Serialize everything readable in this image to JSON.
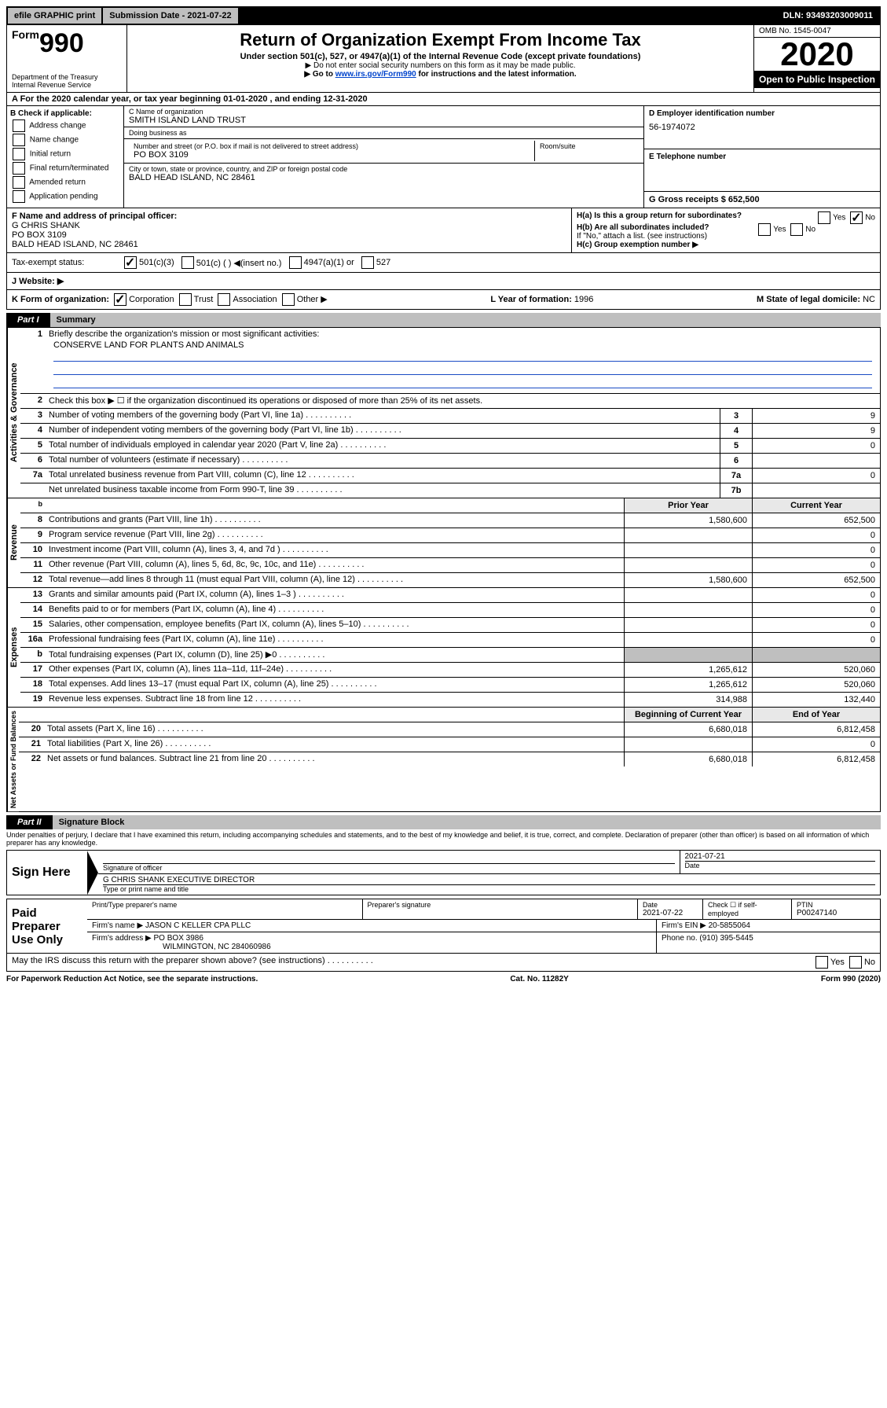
{
  "topbar": {
    "efile": "efile GRAPHIC print",
    "subdate_lbl": "Submission Date - ",
    "subdate": "2021-07-22",
    "dln_lbl": "DLN: ",
    "dln": "93493203009011"
  },
  "header": {
    "form_pre": "Form",
    "form_num": "990",
    "dept1": "Department of the Treasury",
    "dept2": "Internal Revenue Service",
    "title": "Return of Organization Exempt From Income Tax",
    "sub": "Under section 501(c), 527, or 4947(a)(1) of the Internal Revenue Code (except private foundations)",
    "note1": "▶ Do not enter social security numbers on this form as it may be made public.",
    "note2_pre": "▶ Go to ",
    "note2_link": "www.irs.gov/Form990",
    "note2_post": " for instructions and the latest information.",
    "omb": "OMB No. 1545-0047",
    "year": "2020",
    "open": "Open to Public Inspection"
  },
  "A": {
    "text_pre": "A  For the 2020 calendar year, or tax year beginning ",
    "begin": "01-01-2020",
    "mid": "  , and ending ",
    "end": "12-31-2020"
  },
  "B": {
    "hd": "B Check if applicable:",
    "items": [
      "Address change",
      "Name change",
      "Initial return",
      "Final return/terminated",
      "Amended return",
      "Application pending"
    ]
  },
  "C": {
    "name_lbl": "C Name of organization",
    "name": "SMITH ISLAND LAND TRUST",
    "dba_lbl": "Doing business as",
    "dba": "",
    "addr_lbl": "Number and street (or P.O. box if mail is not delivered to street address)",
    "addr": "PO BOX 3109",
    "suite_lbl": "Room/suite",
    "city_lbl": "City or town, state or province, country, and ZIP or foreign postal code",
    "city": "BALD HEAD ISLAND, NC  28461"
  },
  "D": {
    "lbl": "D Employer identification number",
    "val": "56-1974072"
  },
  "E": {
    "lbl": "E Telephone number",
    "val": ""
  },
  "G": {
    "lbl": "G Gross receipts $ ",
    "val": "652,500"
  },
  "F": {
    "lbl": "F  Name and address of principal officer:",
    "l1": "G CHRIS SHANK",
    "l2": "PO BOX 3109",
    "l3": "BALD HEAD ISLAND, NC  28461"
  },
  "H": {
    "a": "H(a)  Is this a group return for subordinates?",
    "b": "H(b)  Are all subordinates included?",
    "bnote": "If \"No,\" attach a list. (see instructions)",
    "c": "H(c)  Group exemption number ▶",
    "yes": "Yes",
    "no": "No"
  },
  "I": {
    "lbl": "Tax-exempt status:",
    "o1": "501(c)(3)",
    "o2": "501(c) (  ) ◀(insert no.)",
    "o3": "4947(a)(1) or",
    "o4": "527"
  },
  "J": {
    "lbl": "J   Website: ▶"
  },
  "K": {
    "lbl": "K Form of organization:",
    "o1": "Corporation",
    "o2": "Trust",
    "o3": "Association",
    "o4": "Other ▶"
  },
  "L": {
    "lbl": "L Year of formation: ",
    "val": "1996"
  },
  "M": {
    "lbl": "M State of legal domicile: ",
    "val": "NC"
  },
  "part1": {
    "pt": "Part I",
    "tt": "Summary"
  },
  "s1": {
    "q1": "Briefly describe the organization's mission or most significant activities:",
    "mission": "CONSERVE LAND FOR PLANTS AND ANIMALS",
    "q2": "Check this box ▶ ☐  if the organization discontinued its operations or disposed of more than 25% of its net assets.",
    "rows_ag": [
      {
        "n": "3",
        "t": "Number of voting members of the governing body (Part VI, line 1a)",
        "box": "3",
        "v": "9"
      },
      {
        "n": "4",
        "t": "Number of independent voting members of the governing body (Part VI, line 1b)",
        "box": "4",
        "v": "9"
      },
      {
        "n": "5",
        "t": "Total number of individuals employed in calendar year 2020 (Part V, line 2a)",
        "box": "5",
        "v": "0"
      },
      {
        "n": "6",
        "t": "Total number of volunteers (estimate if necessary)",
        "box": "6",
        "v": ""
      },
      {
        "n": "7a",
        "t": "Total unrelated business revenue from Part VIII, column (C), line 12",
        "box": "7a",
        "v": "0"
      },
      {
        "n": "",
        "t": "Net unrelated business taxable income from Form 990-T, line 39",
        "box": "7b",
        "v": ""
      }
    ],
    "hdr_prior": "Prior Year",
    "hdr_curr": "Current Year",
    "rev": [
      {
        "n": "8",
        "t": "Contributions and grants (Part VIII, line 1h)",
        "p": "1,580,600",
        "c": "652,500"
      },
      {
        "n": "9",
        "t": "Program service revenue (Part VIII, line 2g)",
        "p": "",
        "c": "0"
      },
      {
        "n": "10",
        "t": "Investment income (Part VIII, column (A), lines 3, 4, and 7d )",
        "p": "",
        "c": "0"
      },
      {
        "n": "11",
        "t": "Other revenue (Part VIII, column (A), lines 5, 6d, 8c, 9c, 10c, and 11e)",
        "p": "",
        "c": "0"
      },
      {
        "n": "12",
        "t": "Total revenue—add lines 8 through 11 (must equal Part VIII, column (A), line 12)",
        "p": "1,580,600",
        "c": "652,500"
      }
    ],
    "exp": [
      {
        "n": "13",
        "t": "Grants and similar amounts paid (Part IX, column (A), lines 1–3 )",
        "p": "",
        "c": "0"
      },
      {
        "n": "14",
        "t": "Benefits paid to or for members (Part IX, column (A), line 4)",
        "p": "",
        "c": "0"
      },
      {
        "n": "15",
        "t": "Salaries, other compensation, employee benefits (Part IX, column (A), lines 5–10)",
        "p": "",
        "c": "0"
      },
      {
        "n": "16a",
        "t": "Professional fundraising fees (Part IX, column (A), line 11e)",
        "p": "",
        "c": "0"
      },
      {
        "n": "b",
        "t": "Total fundraising expenses (Part IX, column (D), line 25) ▶0",
        "p": "GRAY",
        "c": "GRAY"
      },
      {
        "n": "17",
        "t": "Other expenses (Part IX, column (A), lines 11a–11d, 11f–24e)",
        "p": "1,265,612",
        "c": "520,060"
      },
      {
        "n": "18",
        "t": "Total expenses. Add lines 13–17 (must equal Part IX, column (A), line 25)",
        "p": "1,265,612",
        "c": "520,060"
      },
      {
        "n": "19",
        "t": "Revenue less expenses. Subtract line 18 from line 12",
        "p": "314,988",
        "c": "132,440"
      }
    ],
    "hdr_beg": "Beginning of Current Year",
    "hdr_end": "End of Year",
    "na": [
      {
        "n": "20",
        "t": "Total assets (Part X, line 16)",
        "p": "6,680,018",
        "c": "6,812,458"
      },
      {
        "n": "21",
        "t": "Total liabilities (Part X, line 26)",
        "p": "",
        "c": "0"
      },
      {
        "n": "22",
        "t": "Net assets or fund balances. Subtract line 21 from line 20",
        "p": "6,680,018",
        "c": "6,812,458"
      }
    ],
    "vlabels": {
      "ag": "Activities & Governance",
      "rev": "Revenue",
      "exp": "Expenses",
      "na": "Net Assets or\nFund Balances"
    }
  },
  "part2": {
    "pt": "Part II",
    "tt": "Signature Block"
  },
  "perjury": "Under penalties of perjury, I declare that I have examined this return, including accompanying schedules and statements, and to the best of my knowledge and belief, it is true, correct, and complete. Declaration of preparer (other than officer) is based on all information of which preparer has any knowledge.",
  "sign": {
    "here": "Sign Here",
    "sig_lbl": "Signature of officer",
    "date": "2021-07-21",
    "date_lbl": "Date",
    "name": "G CHRIS SHANK  EXECUTIVE DIRECTOR",
    "name_lbl": "Type or print name and title"
  },
  "paid": {
    "lbl": "Paid Preparer Use Only",
    "h_prep": "Print/Type preparer's name",
    "h_sig": "Preparer's signature",
    "h_date": "Date",
    "date": "2021-07-22",
    "h_check": "Check ☐ if self-employed",
    "h_ptin": "PTIN",
    "ptin": "P00247140",
    "firm_lbl": "Firm's name    ▶ ",
    "firm": "JASON C KELLER CPA PLLC",
    "ein_lbl": "Firm's EIN ▶ ",
    "ein": "20-5855064",
    "addr_lbl": "Firm's address ▶ ",
    "addr1": "PO BOX 3986",
    "addr2": "WILMINGTON, NC  284060986",
    "phone_lbl": "Phone no. ",
    "phone": "(910) 395-5445"
  },
  "discuss": "May the IRS discuss this return with the preparer shown above? (see instructions)",
  "footer": {
    "l": "For Paperwork Reduction Act Notice, see the separate instructions.",
    "c": "Cat. No. 11282Y",
    "r": "Form 990 (2020)"
  }
}
